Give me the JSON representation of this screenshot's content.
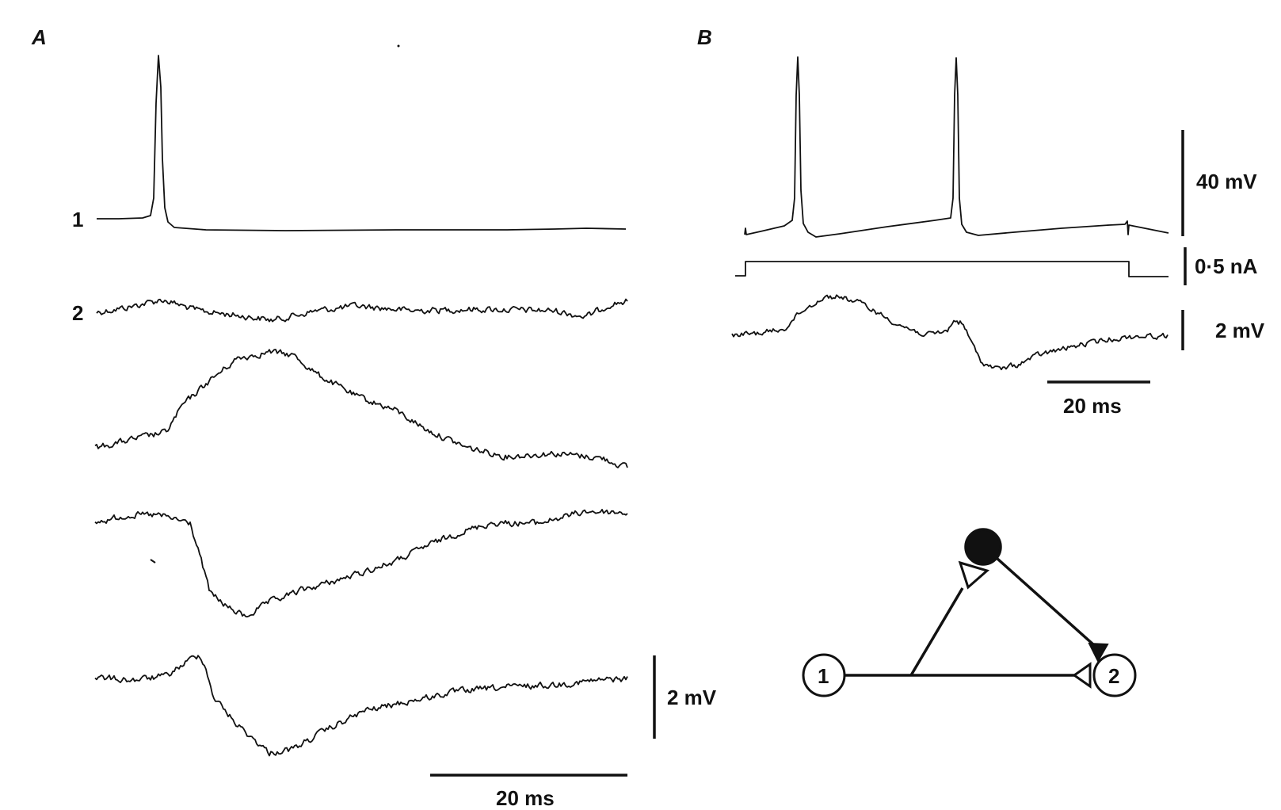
{
  "panels": {
    "a": {
      "letter": "A",
      "trace_1_label": "1",
      "trace_2_label": "2",
      "voltage_scale": "2 mV",
      "time_scale": "20 ms"
    },
    "b": {
      "letter": "B",
      "voltage_scale_top": "40 mV",
      "current_scale": "0·5 nA",
      "voltage_scale_bottom": "2 mV",
      "time_scale": "20 ms"
    }
  },
  "circuit": {
    "node_1": "1",
    "node_2": "2"
  }
}
